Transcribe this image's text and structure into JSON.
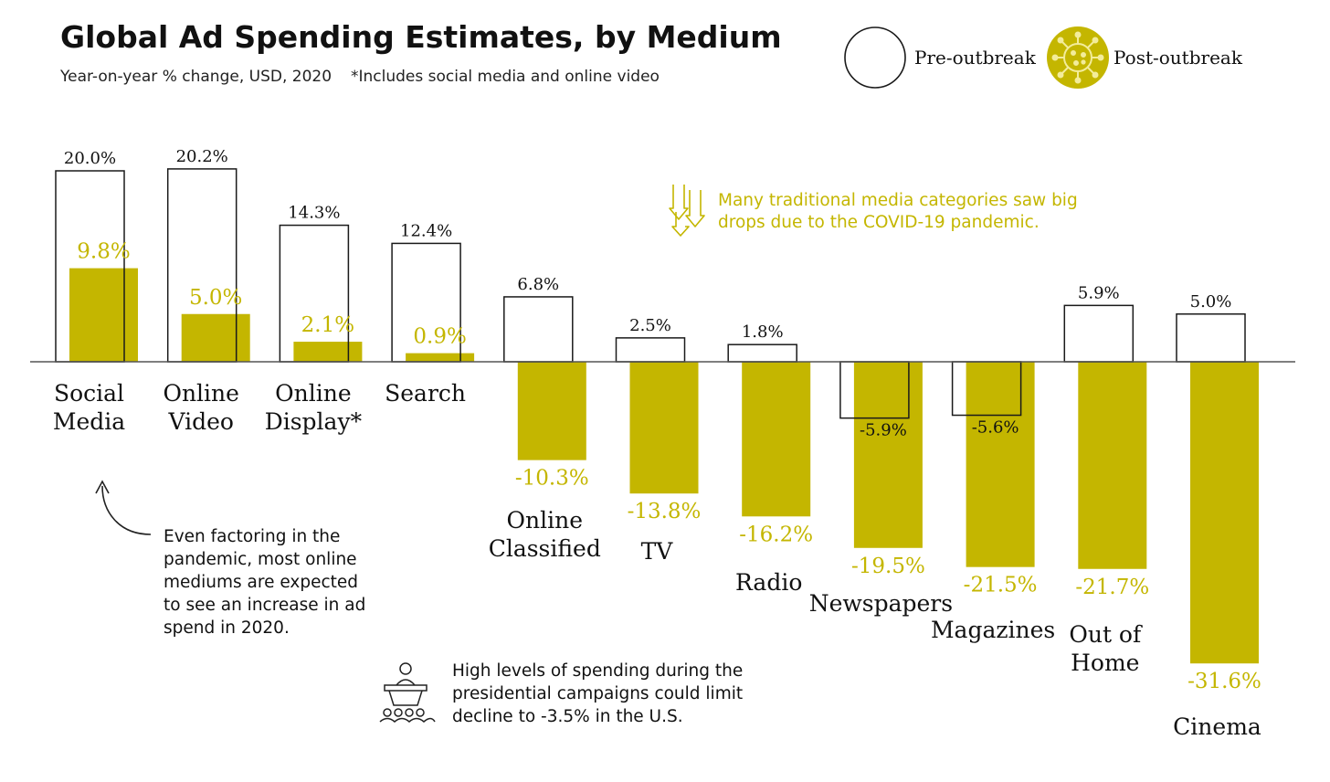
{
  "chart_data": {
    "type": "bar",
    "title": "Global Ad Spending Estimates, by Medium",
    "subtitle": "Year-on-year % change, USD, 2020",
    "footnote": "*Includes social media and online video",
    "categories": [
      [
        "Social",
        "Media"
      ],
      [
        "Online",
        "Video"
      ],
      [
        "Online",
        "Display*"
      ],
      [
        "Search"
      ],
      [
        "Online",
        "Classified"
      ],
      [
        "TV"
      ],
      [
        "Radio"
      ],
      [
        "Newspapers"
      ],
      [
        "Magazines"
      ],
      [
        "Out of",
        "Home"
      ],
      [
        "Cinema"
      ]
    ],
    "series": [
      {
        "name": "Pre-outbreak",
        "values": [
          20.0,
          20.2,
          14.3,
          12.4,
          6.8,
          2.5,
          1.8,
          -5.9,
          -5.6,
          5.9,
          5.0
        ],
        "labels": [
          "20.0%",
          "20.2%",
          "14.3%",
          "12.4%",
          "6.8%",
          "2.5%",
          "1.8%",
          "-5.9%",
          "-5.6%",
          "5.9%",
          "5.0%"
        ],
        "style": "outline"
      },
      {
        "name": "Post-outbreak",
        "values": [
          9.8,
          5.0,
          2.1,
          0.9,
          -10.3,
          -13.8,
          -16.2,
          -19.5,
          -21.5,
          -21.7,
          -31.6
        ],
        "labels": [
          "9.8%",
          "5.0%",
          "2.1%",
          "0.9%",
          "-10.3%",
          "-13.8%",
          "-16.2%",
          "-19.5%",
          "-21.5%",
          "-21.7%",
          "-31.6%"
        ],
        "style": "filled"
      }
    ],
    "annotations": [
      [
        "Many traditional media categories saw big",
        "drops due to the COVID-19 pandemic."
      ],
      [
        "Even factoring in the",
        "pandemic, most online",
        "mediums are expected",
        "to see an increase in ad",
        "spend in 2020."
      ],
      [
        "High levels of spending during the",
        "presidential campaigns could limit",
        "decline to -3.5% in the U.S."
      ]
    ]
  },
  "colors": {
    "post_fill": "#c4b600",
    "post_text": "#c4b600",
    "pre_stroke": "#1a1a1a",
    "baseline": "#555555",
    "background": "#ffffff"
  },
  "icons": {
    "pre_outbreak": "circle-icon",
    "post_outbreak": "virus-icon",
    "drops": "down-arrows-icon",
    "online_pointer": "curved-arrow-icon",
    "campaign": "podium-crowd-icon"
  }
}
